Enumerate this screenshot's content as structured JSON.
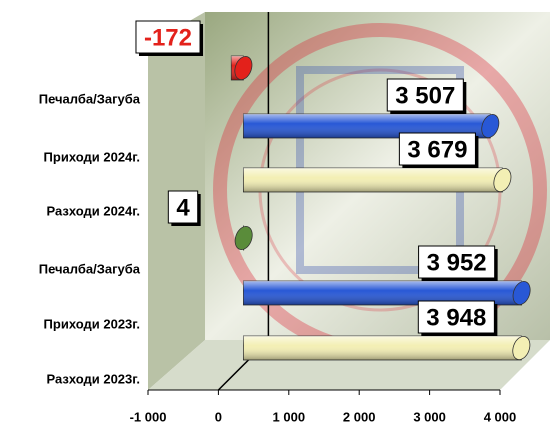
{
  "chart_data": {
    "type": "bar3d-horizontal",
    "categories": [
      "Печалба/Загуба",
      "Приходи 2024г.",
      "Разходи 2024г.",
      "Печалба/Загуба",
      "Приходи 2023г.",
      "Разходи 2023г."
    ],
    "values": [
      -172,
      3507,
      3679,
      4,
      3952,
      3948
    ],
    "value_labels": [
      "-172",
      "3 507",
      "3 679",
      "4",
      "3 952",
      "3 948"
    ],
    "colors": [
      "#e3211b",
      "#2858d6",
      "#f3efb4",
      "#5a8c3a",
      "#2858d6",
      "#f3efb4"
    ],
    "xlim": [
      -1000,
      4000
    ],
    "xticks": [
      {
        "value": -1000,
        "label": "-1 000"
      },
      0,
      {
        "value": 1000,
        "label": "1 000"
      },
      {
        "value": 2000,
        "label": "2 000"
      },
      {
        "value": 3000,
        "label": "3 000"
      },
      {
        "value": 4000,
        "label": "4 000"
      }
    ]
  }
}
